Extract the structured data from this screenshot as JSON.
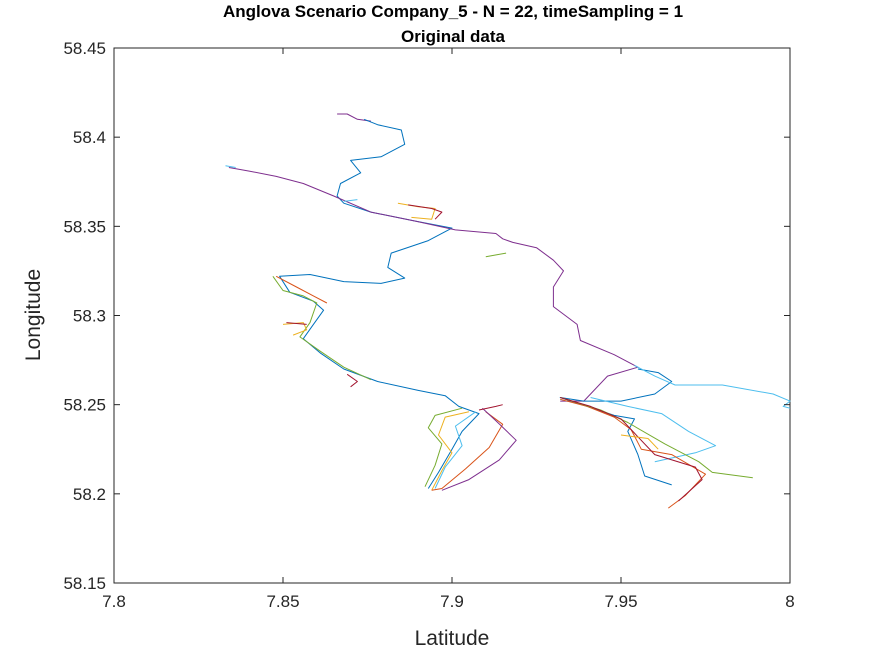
{
  "chart_data": {
    "type": "line",
    "title": "Anglova Scenario Company_5 - N = 22, timeSampling = 1",
    "subtitle": "Original data",
    "xlabel": "Latitude",
    "ylabel": "Longitude",
    "xlim": [
      7.8,
      8.0
    ],
    "ylim": [
      58.15,
      58.45
    ],
    "xticks": [
      "7.8",
      "7.85",
      "7.9",
      "7.95",
      "8"
    ],
    "yticks": [
      "58.15",
      "58.2",
      "58.25",
      "58.3",
      "58.35",
      "58.4",
      "58.45"
    ],
    "grid": false,
    "legend": "none",
    "colors": [
      "#0072BD",
      "#D95319",
      "#EDB120",
      "#7E2F8E",
      "#77AC30",
      "#4DBEEE",
      "#A2142F"
    ],
    "series": [
      {
        "color": "#7E2F8E",
        "points": [
          [
            7.866,
            58.413
          ],
          [
            7.869,
            58.413
          ],
          [
            7.872,
            58.41
          ],
          [
            7.876,
            58.409
          ]
        ]
      },
      {
        "color": "#0072BD",
        "points": [
          [
            7.874,
            58.41
          ],
          [
            7.878,
            58.407
          ],
          [
            7.885,
            58.404
          ],
          [
            7.886,
            58.396
          ],
          [
            7.879,
            58.389
          ],
          [
            7.87,
            58.387
          ],
          [
            7.873,
            58.38
          ],
          [
            7.867,
            58.374
          ],
          [
            7.866,
            58.367
          ],
          [
            7.868,
            58.363
          ],
          [
            7.876,
            58.358
          ],
          [
            7.889,
            58.353
          ],
          [
            7.9,
            58.349
          ],
          [
            7.893,
            58.342
          ],
          [
            7.882,
            58.335
          ],
          [
            7.881,
            58.327
          ],
          [
            7.886,
            58.321
          ],
          [
            7.879,
            58.318
          ],
          [
            7.868,
            58.319
          ],
          [
            7.858,
            58.323
          ],
          [
            7.849,
            58.322
          ],
          [
            7.852,
            58.313
          ],
          [
            7.859,
            58.308
          ],
          [
            7.862,
            58.303
          ],
          [
            7.859,
            58.295
          ],
          [
            7.856,
            58.287
          ],
          [
            7.861,
            58.279
          ],
          [
            7.868,
            58.27
          ],
          [
            7.878,
            58.263
          ],
          [
            7.89,
            58.258
          ],
          [
            7.898,
            58.255
          ],
          [
            7.902,
            58.249
          ],
          [
            7.908,
            58.245
          ],
          [
            7.903,
            58.235
          ],
          [
            7.9,
            58.225
          ],
          [
            7.896,
            58.212
          ],
          [
            7.893,
            58.203
          ]
        ]
      },
      {
        "color": "#7E2F8E",
        "points": [
          [
            7.834,
            58.383
          ],
          [
            7.84,
            58.381
          ],
          [
            7.848,
            58.378
          ],
          [
            7.856,
            58.374
          ],
          [
            7.865,
            58.367
          ],
          [
            7.876,
            58.358
          ],
          [
            7.889,
            58.353
          ],
          [
            7.901,
            58.348
          ],
          [
            7.913,
            58.346
          ],
          [
            7.915,
            58.343
          ],
          [
            7.918,
            58.341
          ],
          [
            7.925,
            58.338
          ],
          [
            7.93,
            58.331
          ],
          [
            7.933,
            58.325
          ],
          [
            7.93,
            58.316
          ],
          [
            7.93,
            58.305
          ],
          [
            7.937,
            58.295
          ],
          [
            7.938,
            58.286
          ],
          [
            7.948,
            58.278
          ],
          [
            7.955,
            58.271
          ],
          [
            7.946,
            58.266
          ],
          [
            7.942,
            58.258
          ],
          [
            7.939,
            58.252
          ],
          [
            7.932,
            58.252
          ]
        ]
      },
      {
        "color": "#4DBEEE",
        "points": [
          [
            7.833,
            58.384
          ],
          [
            7.836,
            58.383
          ]
        ]
      },
      {
        "color": "#EDB120",
        "points": [
          [
            7.884,
            58.363
          ],
          [
            7.89,
            58.361
          ],
          [
            7.895,
            58.36
          ],
          [
            7.894,
            58.354
          ],
          [
            7.888,
            58.355
          ]
        ]
      },
      {
        "color": "#A2142F",
        "points": [
          [
            7.887,
            58.362
          ],
          [
            7.894,
            58.36
          ],
          [
            7.897,
            58.358
          ],
          [
            7.895,
            58.354
          ]
        ]
      },
      {
        "color": "#77AC30",
        "points": [
          [
            7.91,
            58.333
          ],
          [
            7.916,
            58.335
          ]
        ]
      },
      {
        "color": "#4DBEEE",
        "points": [
          [
            7.868,
            58.364
          ],
          [
            7.872,
            58.365
          ]
        ]
      },
      {
        "color": "#77AC30",
        "points": [
          [
            7.847,
            58.322
          ],
          [
            7.85,
            58.314
          ],
          [
            7.856,
            58.311
          ],
          [
            7.86,
            58.307
          ],
          [
            7.858,
            58.296
          ],
          [
            7.855,
            58.288
          ],
          [
            7.861,
            58.28
          ],
          [
            7.868,
            58.271
          ],
          [
            7.876,
            58.264
          ]
        ]
      },
      {
        "color": "#D95319",
        "points": [
          [
            7.848,
            58.322
          ],
          [
            7.854,
            58.316
          ],
          [
            7.859,
            58.311
          ],
          [
            7.863,
            58.307
          ]
        ]
      },
      {
        "color": "#EDB120",
        "points": [
          [
            7.85,
            58.295
          ],
          [
            7.856,
            58.296
          ],
          [
            7.857,
            58.292
          ],
          [
            7.853,
            58.289
          ]
        ]
      },
      {
        "color": "#A2142F",
        "points": [
          [
            7.851,
            58.296
          ],
          [
            7.857,
            58.295
          ]
        ]
      },
      {
        "color": "#A2142F",
        "points": [
          [
            7.869,
            58.267
          ],
          [
            7.872,
            58.263
          ],
          [
            7.87,
            58.26
          ]
        ]
      },
      {
        "color": "#77AC30",
        "points": [
          [
            7.903,
            58.248
          ],
          [
            7.895,
            58.244
          ],
          [
            7.893,
            58.237
          ],
          [
            7.897,
            58.228
          ],
          [
            7.895,
            58.216
          ],
          [
            7.892,
            58.204
          ]
        ]
      },
      {
        "color": "#EDB120",
        "points": [
          [
            7.905,
            58.246
          ],
          [
            7.898,
            58.243
          ],
          [
            7.896,
            58.233
          ],
          [
            7.9,
            58.223
          ],
          [
            7.897,
            58.213
          ],
          [
            7.894,
            58.202
          ]
        ]
      },
      {
        "color": "#4DBEEE",
        "points": [
          [
            7.907,
            58.246
          ],
          [
            7.901,
            58.238
          ],
          [
            7.903,
            58.227
          ],
          [
            7.898,
            58.215
          ],
          [
            7.895,
            58.203
          ]
        ]
      },
      {
        "color": "#D95319",
        "points": [
          [
            7.91,
            58.246
          ],
          [
            7.915,
            58.239
          ],
          [
            7.911,
            58.226
          ],
          [
            7.904,
            58.214
          ],
          [
            7.897,
            58.203
          ],
          [
            7.894,
            58.202
          ]
        ]
      },
      {
        "color": "#7E2F8E",
        "points": [
          [
            7.909,
            58.248
          ],
          [
            7.913,
            58.241
          ],
          [
            7.919,
            58.23
          ],
          [
            7.914,
            58.219
          ],
          [
            7.905,
            58.208
          ],
          [
            7.897,
            58.202
          ]
        ]
      },
      {
        "color": "#A2142F",
        "points": [
          [
            7.908,
            58.247
          ],
          [
            7.913,
            58.249
          ],
          [
            7.915,
            58.25
          ]
        ]
      },
      {
        "color": "#0072BD",
        "points": [
          [
            7.955,
            58.27
          ],
          [
            7.961,
            58.268
          ],
          [
            7.965,
            58.263
          ],
          [
            7.96,
            58.256
          ],
          [
            7.95,
            58.252
          ],
          [
            7.939,
            58.252
          ],
          [
            7.932,
            58.254
          ],
          [
            7.94,
            58.249
          ],
          [
            7.948,
            58.244
          ],
          [
            7.954,
            58.242
          ],
          [
            7.952,
            58.235
          ],
          [
            7.955,
            58.222
          ],
          [
            7.957,
            58.21
          ],
          [
            7.965,
            58.205
          ]
        ]
      },
      {
        "color": "#4DBEEE",
        "points": [
          [
            7.954,
            58.272
          ],
          [
            7.96,
            58.266
          ],
          [
            7.966,
            58.261
          ],
          [
            7.98,
            58.261
          ],
          [
            7.995,
            58.256
          ],
          [
            8.0,
            58.252
          ],
          [
            7.998,
            58.249
          ],
          [
            8.0,
            58.248
          ]
        ]
      },
      {
        "color": "#4DBEEE",
        "points": [
          [
            7.941,
            58.254
          ],
          [
            7.952,
            58.249
          ],
          [
            7.962,
            58.245
          ],
          [
            7.97,
            58.235
          ],
          [
            7.978,
            58.227
          ],
          [
            7.972,
            58.223
          ],
          [
            7.96,
            58.218
          ]
        ]
      },
      {
        "color": "#D95319",
        "points": [
          [
            7.932,
            58.253
          ],
          [
            7.94,
            58.249
          ],
          [
            7.948,
            58.243
          ],
          [
            7.953,
            58.236
          ],
          [
            7.956,
            58.225
          ],
          [
            7.965,
            58.222
          ],
          [
            7.975,
            58.211
          ],
          [
            7.969,
            58.199
          ],
          [
            7.964,
            58.192
          ]
        ]
      },
      {
        "color": "#77AC30",
        "points": [
          [
            7.932,
            58.254
          ],
          [
            7.944,
            58.247
          ],
          [
            7.952,
            58.24
          ],
          [
            7.963,
            58.228
          ],
          [
            7.973,
            58.218
          ],
          [
            7.977,
            58.212
          ],
          [
            7.989,
            58.209
          ]
        ]
      },
      {
        "color": "#A2142F",
        "points": [
          [
            7.932,
            58.254
          ],
          [
            7.941,
            58.249
          ],
          [
            7.95,
            58.242
          ],
          [
            7.955,
            58.232
          ],
          [
            7.96,
            58.222
          ],
          [
            7.972,
            58.215
          ],
          [
            7.974,
            58.208
          ],
          [
            7.967,
            58.196
          ]
        ]
      },
      {
        "color": "#EDB120",
        "points": [
          [
            7.95,
            58.233
          ],
          [
            7.958,
            58.231
          ],
          [
            7.961,
            58.225
          ]
        ]
      }
    ]
  }
}
